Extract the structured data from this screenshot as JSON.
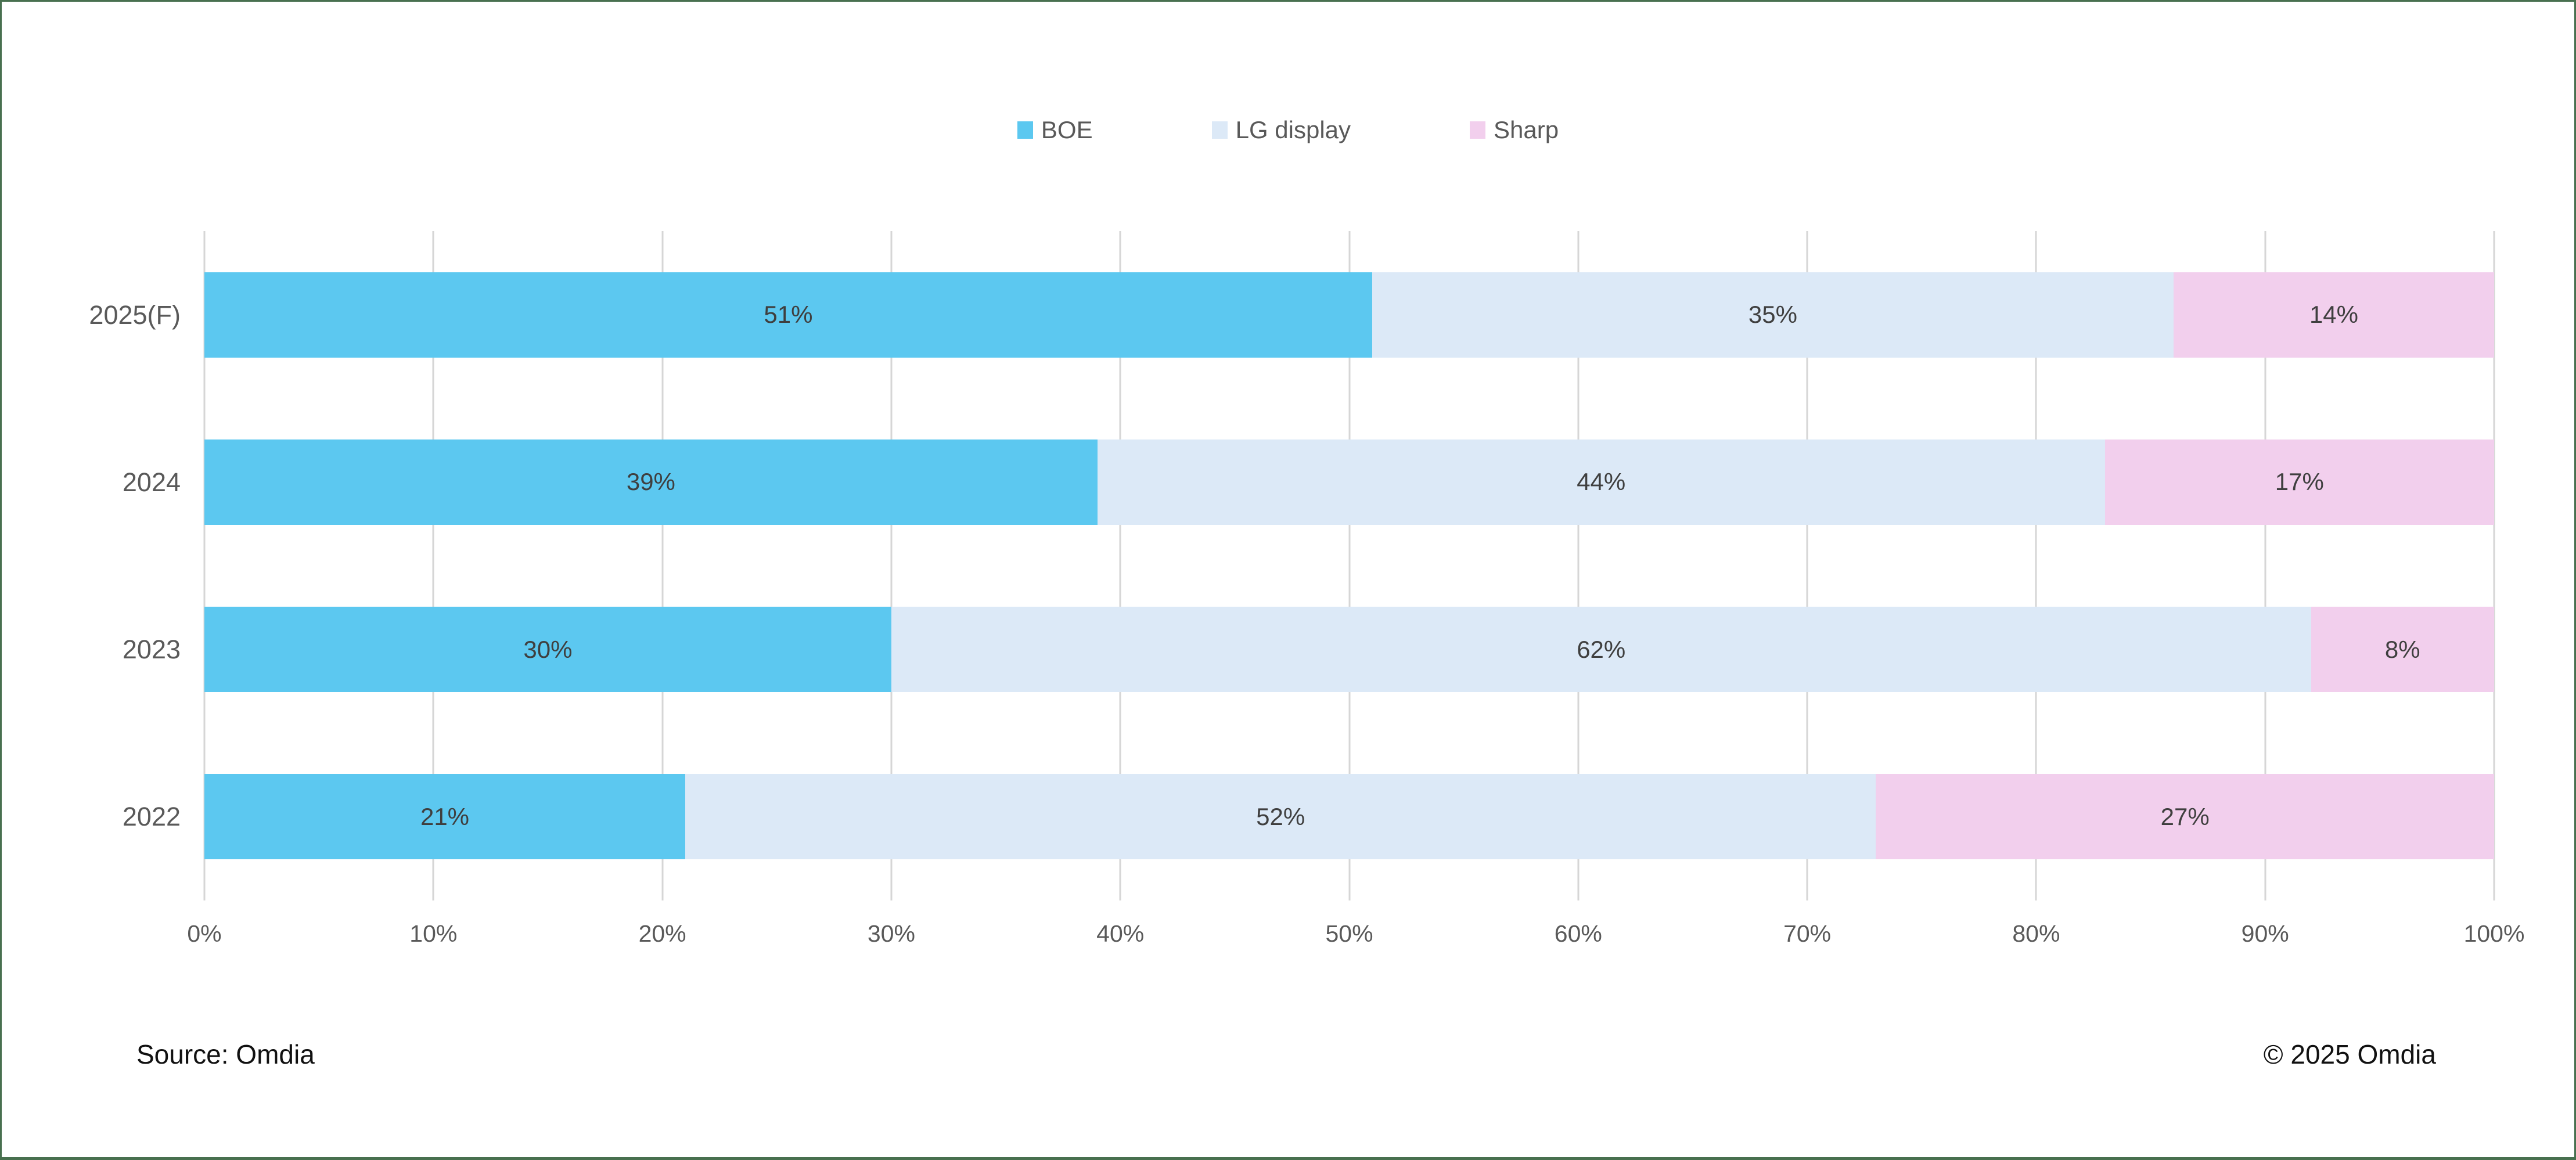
{
  "chart_data": {
    "type": "bar",
    "orientation": "horizontal",
    "stacked": true,
    "title": "",
    "categories": [
      "2025(F)",
      "2024",
      "2023",
      "2022"
    ],
    "series": [
      {
        "name": "BOE",
        "color": "#5CC8F0",
        "values": [
          51,
          39,
          30,
          21
        ]
      },
      {
        "name": "LG display",
        "color": "#DCE9F7",
        "values": [
          35,
          44,
          62,
          52
        ]
      },
      {
        "name": "Sharp",
        "color": "#F2CFED",
        "values": [
          14,
          17,
          8,
          27
        ]
      }
    ],
    "value_suffix": "%",
    "xlim": [
      0,
      100
    ],
    "x_ticks": [
      "0%",
      "10%",
      "20%",
      "30%",
      "40%",
      "50%",
      "60%",
      "70%",
      "80%",
      "90%",
      "100%"
    ],
    "grid": true,
    "legend_position": "top",
    "gridline_color": "#D6D6D6",
    "label_color": "#3F3F3F",
    "axis_text_color": "#595959",
    "frame_border_color": "#48704F"
  },
  "footer": {
    "source": "Source: Omdia",
    "copyright": "© 2025 Omdia"
  }
}
